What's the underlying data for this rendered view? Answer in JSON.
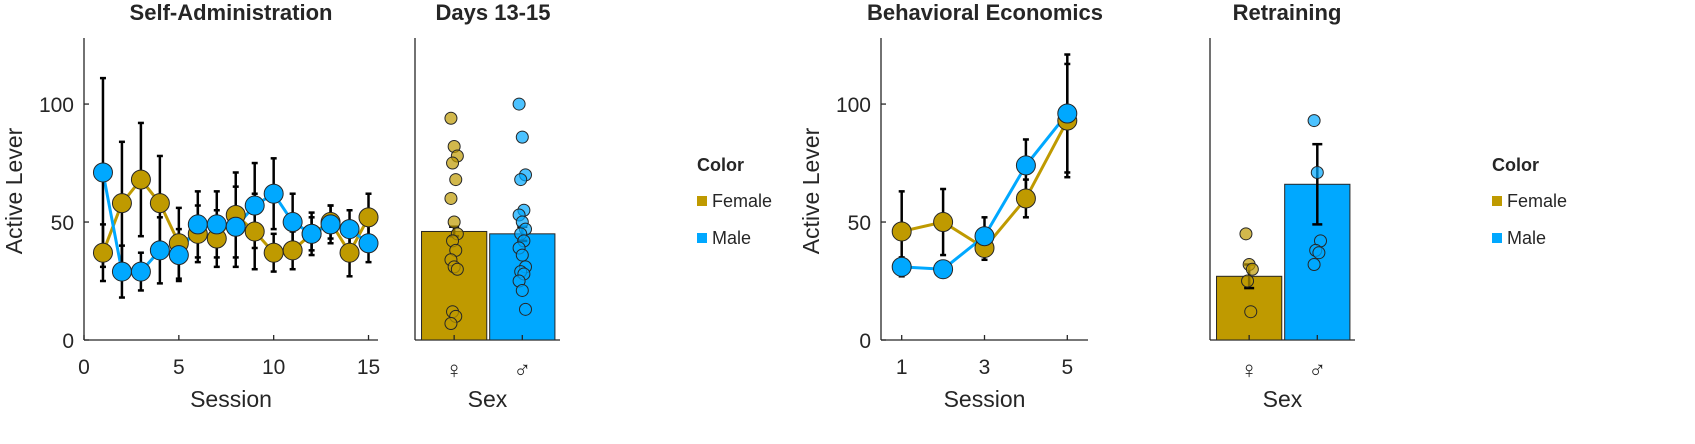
{
  "colors": {
    "female": "#BF9A00",
    "male": "#00A8FF",
    "axis": "#262626",
    "error": "#000000"
  },
  "chart_data": [
    {
      "type": "line",
      "title": "Self-Administration",
      "xlabel": "Session",
      "ylabel": "Active Lever",
      "xlim": [
        0,
        15.5
      ],
      "ylim": [
        0,
        128
      ],
      "xticks": [
        0,
        5,
        10,
        15
      ],
      "yticks": [
        0,
        50,
        100
      ],
      "x": [
        1,
        2,
        3,
        4,
        5,
        6,
        7,
        8,
        9,
        10,
        11,
        12,
        13,
        14,
        15
      ],
      "series": [
        {
          "name": "Female",
          "values": [
            37,
            58,
            68,
            58,
            41,
            45,
            43,
            53,
            46,
            37,
            38,
            45,
            50,
            37,
            52
          ],
          "err": [
            12,
            26,
            24,
            20,
            15,
            12,
            12,
            18,
            16,
            8,
            8,
            7,
            7,
            10,
            10
          ]
        },
        {
          "name": "Male",
          "values": [
            71,
            29,
            29,
            38,
            36,
            49,
            49,
            48,
            57,
            62,
            50,
            45,
            49,
            47,
            41
          ],
          "err": [
            40,
            11,
            8,
            14,
            11,
            14,
            14,
            17,
            18,
            15,
            12,
            9,
            8,
            8,
            8
          ]
        }
      ]
    },
    {
      "type": "bar",
      "title": "Days 13-15",
      "xlabel": "Sex",
      "ylim": [
        0,
        128
      ],
      "categories": [
        "♀",
        "♂"
      ],
      "values": [
        46,
        45
      ],
      "err": [
        2,
        3
      ],
      "points": [
        [
          94,
          82,
          78,
          75,
          68,
          60,
          50,
          45,
          42,
          38,
          34,
          31,
          30,
          12,
          10,
          7
        ],
        [
          100,
          86,
          70,
          68,
          55,
          53,
          50,
          47,
          45,
          42,
          39,
          36,
          31,
          29,
          28,
          25,
          21,
          13
        ]
      ]
    },
    {
      "type": "line",
      "title": "Behavioral Economics",
      "xlabel": "Session",
      "ylabel": "Active Lever",
      "xlim": [
        0.5,
        5.5
      ],
      "ylim": [
        0,
        128
      ],
      "xticks": [
        1,
        3,
        5
      ],
      "yticks": [
        0,
        50,
        100
      ],
      "x": [
        1,
        2,
        3,
        4,
        5
      ],
      "series": [
        {
          "name": "Female",
          "values": [
            46,
            50,
            39,
            60,
            93
          ],
          "err": [
            17,
            14,
            5,
            8,
            24
          ]
        },
        {
          "name": "Male",
          "values": [
            31,
            30,
            44,
            74,
            96
          ],
          "err": [
            4,
            2,
            8,
            11,
            25
          ]
        }
      ]
    },
    {
      "type": "bar",
      "title": "Retraining",
      "xlabel": "Sex",
      "ylim": [
        0,
        128
      ],
      "categories": [
        "♀",
        "♂"
      ],
      "values": [
        27,
        66
      ],
      "err": [
        5,
        17
      ],
      "points": [
        [
          45,
          32,
          30,
          25,
          12
        ],
        [
          93,
          71,
          42,
          38,
          37,
          32
        ]
      ]
    }
  ],
  "legend": [
    {
      "title": "Color",
      "items": [
        "Female",
        "Male"
      ]
    },
    {
      "title": "Color",
      "items": [
        "Female",
        "Male"
      ]
    }
  ]
}
